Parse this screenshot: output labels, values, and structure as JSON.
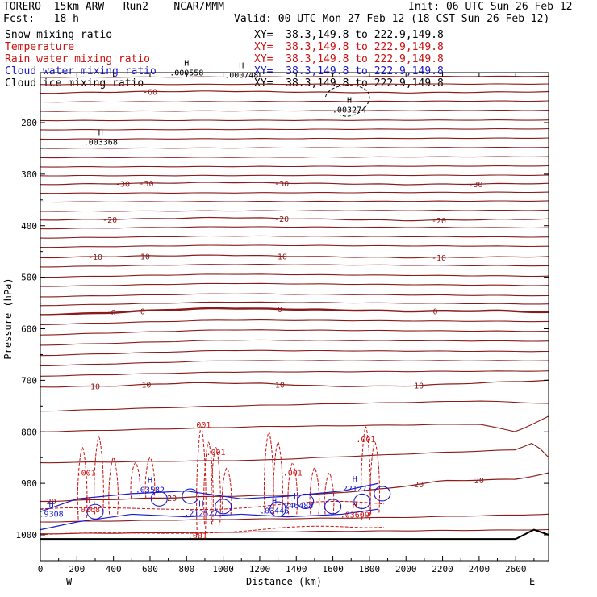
{
  "header": {
    "title": "TORERO  15km ARW   Run2    NCAR/MMM",
    "init": "Init: 06 UTC Sun 26 Feb 12",
    "fcst": "Fcst:   18 h",
    "valid": "Valid: 00 UTC Mon 27 Feb 12 (18 CST Sun 26 Feb 12)"
  },
  "legend": [
    {
      "name": "Snow mixing ratio",
      "xy": "XY=  38.3,149.8 to 222.9,149.8",
      "color": "#000000"
    },
    {
      "name": "Temperature",
      "xy": "XY=  38.3,149.8 to 222.9,149.8",
      "color": "#cc1010"
    },
    {
      "name": "Rain water mixing ratio",
      "xy": "XY=  38.3,149.8 to 222.9,149.8",
      "color": "#cc1010"
    },
    {
      "name": "Cloud water mixing ratio",
      "xy": "XY=  38.3,149.8 to 222.9,149.8",
      "color": "#1a1acc"
    },
    {
      "name": "Cloud ice mixing ratio",
      "xy": "XY=  38.3,149.8 to 222.9,149.8",
      "color": "#000000"
    }
  ],
  "chart_data": {
    "type": "contour",
    "xlabel": "Distance (km)",
    "ylabel": "Pressure (hPa)",
    "xlim": [
      0,
      2780
    ],
    "ylim": [
      100,
      1010
    ],
    "x_ticks": [
      0,
      200,
      400,
      600,
      800,
      1000,
      1200,
      1400,
      1600,
      1800,
      2000,
      2200,
      2400,
      2600
    ],
    "y_ticks": [
      200,
      300,
      400,
      500,
      600,
      700,
      800,
      900,
      1000
    ],
    "x_end_left": "W",
    "x_end_right": "E",
    "temperature_contours": [
      {
        "level": -60,
        "points": [
          [
            0,
            143
          ],
          [
            500,
            140
          ],
          [
            1000,
            139
          ],
          [
            1500,
            141
          ],
          [
            2000,
            142
          ],
          [
            2780,
            140
          ]
        ],
        "labels": [
          [
            600,
            -60
          ]
        ]
      },
      {
        "level": -30,
        "points": [
          [
            0,
            320
          ],
          [
            500,
            318
          ],
          [
            1000,
            316
          ],
          [
            1500,
            318
          ],
          [
            2000,
            320
          ],
          [
            2780,
            318
          ]
        ],
        "labels": [
          [
            450,
            -30
          ],
          [
            580,
            -30
          ],
          [
            1320,
            -30
          ],
          [
            2380,
            -30
          ]
        ]
      },
      {
        "level": -20,
        "points": [
          [
            0,
            389
          ],
          [
            500,
            387
          ],
          [
            1000,
            384
          ],
          [
            1500,
            387
          ],
          [
            2000,
            390
          ],
          [
            2780,
            387
          ]
        ],
        "labels": [
          [
            380,
            -20
          ],
          [
            1320,
            -20
          ],
          [
            2180,
            -20
          ]
        ]
      },
      {
        "level": -10,
        "points": [
          [
            0,
            462
          ],
          [
            500,
            459
          ],
          [
            1000,
            457
          ],
          [
            1500,
            460
          ],
          [
            2000,
            462
          ],
          [
            2780,
            460
          ]
        ],
        "labels": [
          [
            300,
            -10
          ],
          [
            560,
            -10
          ],
          [
            1310,
            -10
          ],
          [
            2180,
            -10
          ]
        ]
      },
      {
        "level": 0,
        "points": [
          [
            0,
            573
          ],
          [
            300,
            570
          ],
          [
            700,
            563
          ],
          [
            1000,
            560
          ],
          [
            1500,
            563
          ],
          [
            2000,
            566
          ],
          [
            2500,
            565
          ],
          [
            2780,
            568
          ]
        ],
        "labels": [
          [
            400,
            0
          ],
          [
            560,
            0
          ],
          [
            1310,
            0
          ],
          [
            2160,
            0
          ]
        ]
      },
      {
        "level": 10,
        "points": [
          [
            0,
            713
          ],
          [
            400,
            711
          ],
          [
            800,
            705
          ],
          [
            1200,
            706
          ],
          [
            1600,
            712
          ],
          [
            2000,
            711
          ],
          [
            2400,
            705
          ],
          [
            2780,
            700
          ]
        ],
        "labels": [
          [
            300,
            10
          ],
          [
            580,
            10
          ],
          [
            1310,
            10
          ],
          [
            2070,
            10
          ]
        ]
      },
      {
        "level": 20,
        "points": [
          [
            0,
            935
          ],
          [
            500,
            930
          ],
          [
            1000,
            925
          ],
          [
            1500,
            922
          ],
          [
            1900,
            910
          ],
          [
            2200,
            895
          ],
          [
            2600,
            892
          ],
          [
            2780,
            880
          ]
        ],
        "labels": [
          [
            60,
            20
          ],
          [
            720,
            20
          ],
          [
            2070,
            20
          ],
          [
            2400,
            20
          ]
        ]
      }
    ],
    "rain_contour_labels": [
      [
        ".001",
        880,
        792
      ],
      [
        ".001",
        960,
        845
      ],
      [
        ".001",
        250,
        885
      ],
      [
        ".001",
        1380,
        885
      ],
      [
        ".001",
        1780,
        820
      ],
      [
        ".001",
        860,
        1007
      ]
    ],
    "cloud_water_labels": [
      [
        ".03582",
        600,
        915
      ],
      [
        ".212527",
        880,
        960
      ],
      [
        ".246488",
        1400,
        945
      ],
      [
        ".221277",
        1720,
        912
      ],
      [
        ".03446",
        1280,
        955
      ],
      [
        ".9308",
        60,
        962
      ]
    ],
    "rain_max_labels": [
      [
        ".0268",
        260,
        953
      ],
      [
        ".03609",
        1720,
        963
      ]
    ],
    "snow_labels": [
      [
        ".003368",
        330,
        240
      ],
      [
        ".003274",
        1690,
        177
      ],
      [
        ".000748",
        1100,
        110
      ],
      [
        ".000558",
        800,
        105
      ]
    ],
    "max_marker": "H"
  }
}
